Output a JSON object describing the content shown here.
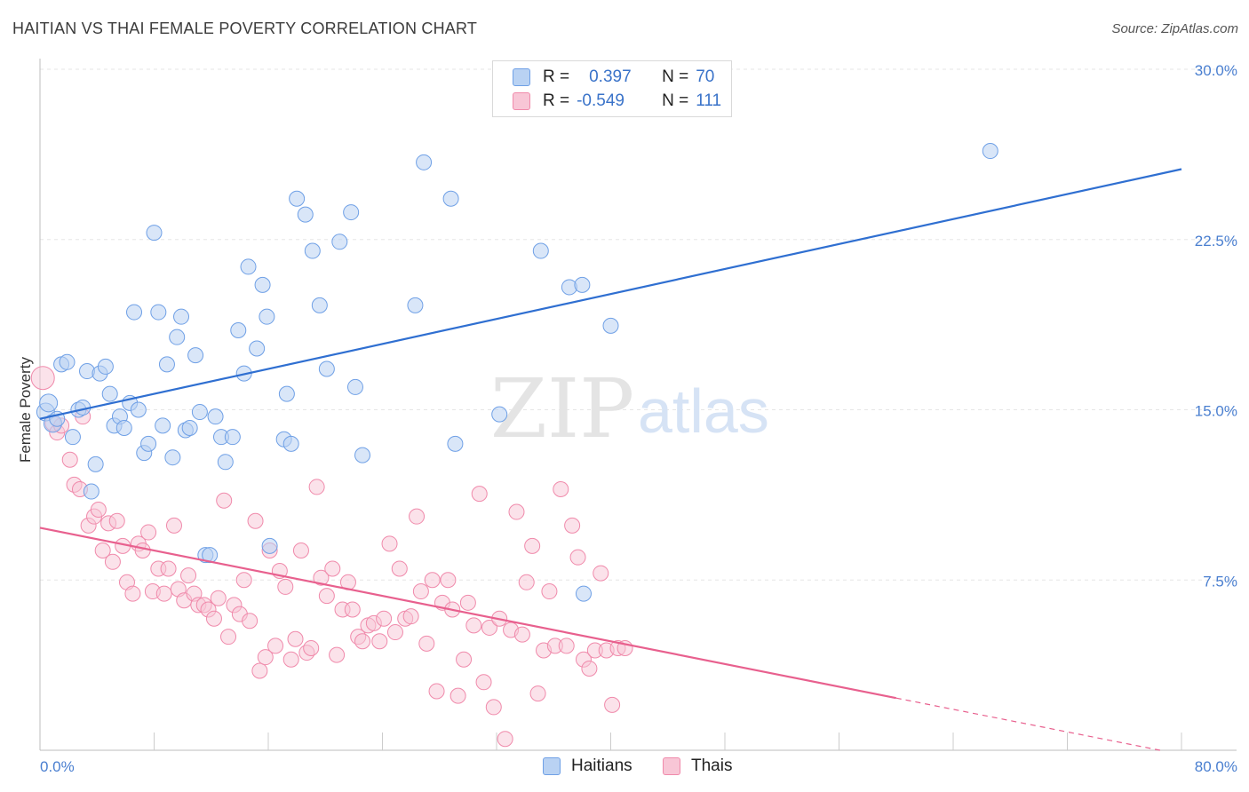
{
  "header": {
    "title": "HAITIAN VS THAI FEMALE POVERTY CORRELATION CHART",
    "source": "Source: ZipAtlas.com"
  },
  "watermark": {
    "zip": "ZIP",
    "atlas": "atlas"
  },
  "legend": {
    "r_label": "R =",
    "n_label": "N =",
    "haitians": {
      "r": "0.397",
      "n": "70",
      "color": "#6fa0e6",
      "fill": "#b9d2f3"
    },
    "thais": {
      "r": "-0.549",
      "n": "111",
      "color": "#f08aab",
      "fill": "#f8c6d6"
    }
  },
  "colors": {
    "haitians_line": "#2f6fd1",
    "thais_line": "#e8608e",
    "grid": "#e6e6e6",
    "axis_text": "#4a7fd0"
  },
  "chart_data": {
    "type": "scatter",
    "title": "HAITIAN VS THAI FEMALE POVERTY CORRELATION CHART",
    "xlabel": "",
    "ylabel": "Female Poverty",
    "xlim": [
      0,
      80
    ],
    "ylim": [
      0,
      30
    ],
    "x_tick_labels": [
      "0.0%",
      "80.0%"
    ],
    "y_ticks": [
      7.5,
      15.0,
      22.5,
      30.0
    ],
    "y_tick_labels": [
      "7.5%",
      "15.0%",
      "22.5%",
      "30.0%"
    ],
    "grid": "horizontal dashed",
    "legend_position": "top-center",
    "series": [
      {
        "name": "Haitians",
        "r": 0.397,
        "n": 70,
        "trend": {
          "x": [
            0,
            80
          ],
          "y": [
            14.6,
            25.6
          ]
        },
        "points": [
          [
            0.4,
            14.9
          ],
          [
            0.6,
            15.3
          ],
          [
            0.9,
            14.4
          ],
          [
            1.2,
            14.6
          ],
          [
            1.5,
            17.0
          ],
          [
            1.9,
            17.1
          ],
          [
            2.3,
            13.8
          ],
          [
            2.7,
            15.0
          ],
          [
            3.0,
            15.1
          ],
          [
            3.3,
            16.7
          ],
          [
            3.6,
            11.4
          ],
          [
            3.9,
            12.6
          ],
          [
            4.2,
            16.6
          ],
          [
            4.6,
            16.9
          ],
          [
            4.9,
            15.7
          ],
          [
            5.2,
            14.3
          ],
          [
            5.6,
            14.7
          ],
          [
            5.9,
            14.2
          ],
          [
            6.3,
            15.3
          ],
          [
            6.6,
            19.3
          ],
          [
            6.9,
            15.0
          ],
          [
            7.3,
            13.1
          ],
          [
            7.6,
            13.5
          ],
          [
            8.0,
            22.8
          ],
          [
            8.3,
            19.3
          ],
          [
            8.6,
            14.3
          ],
          [
            8.9,
            17.0
          ],
          [
            9.3,
            12.9
          ],
          [
            9.6,
            18.2
          ],
          [
            9.9,
            19.1
          ],
          [
            10.2,
            14.1
          ],
          [
            10.5,
            14.2
          ],
          [
            10.9,
            17.4
          ],
          [
            11.2,
            14.9
          ],
          [
            11.6,
            8.6
          ],
          [
            11.9,
            8.6
          ],
          [
            12.3,
            14.7
          ],
          [
            12.7,
            13.8
          ],
          [
            13.0,
            12.7
          ],
          [
            13.5,
            13.8
          ],
          [
            13.9,
            18.5
          ],
          [
            14.3,
            16.6
          ],
          [
            14.6,
            21.3
          ],
          [
            15.2,
            17.7
          ],
          [
            15.6,
            20.5
          ],
          [
            15.9,
            19.1
          ],
          [
            16.1,
            9.0
          ],
          [
            17.1,
            13.7
          ],
          [
            17.3,
            15.7
          ],
          [
            17.6,
            13.5
          ],
          [
            18.0,
            24.3
          ],
          [
            18.6,
            23.6
          ],
          [
            19.1,
            22.0
          ],
          [
            19.6,
            19.6
          ],
          [
            20.1,
            16.8
          ],
          [
            21.0,
            22.4
          ],
          [
            21.8,
            23.7
          ],
          [
            22.1,
            16.0
          ],
          [
            22.6,
            13.0
          ],
          [
            26.3,
            19.6
          ],
          [
            26.9,
            25.9
          ],
          [
            28.8,
            24.3
          ],
          [
            29.1,
            13.5
          ],
          [
            32.2,
            14.8
          ],
          [
            35.1,
            22.0
          ],
          [
            37.1,
            20.4
          ],
          [
            38.0,
            20.5
          ],
          [
            38.1,
            6.9
          ],
          [
            40.0,
            18.7
          ],
          [
            66.6,
            26.4
          ]
        ]
      },
      {
        "name": "Thais",
        "r": -0.549,
        "n": 111,
        "trend": {
          "x": [
            0,
            60
          ],
          "y": [
            9.8,
            2.3
          ]
        },
        "trend_dashed": {
          "x": [
            60,
            78.5
          ],
          "y": [
            2.3,
            0.0
          ]
        },
        "points": [
          [
            0.2,
            16.4
          ],
          [
            0.9,
            14.4
          ],
          [
            1.2,
            14.0
          ],
          [
            1.5,
            14.3
          ],
          [
            2.1,
            12.8
          ],
          [
            2.4,
            11.7
          ],
          [
            2.8,
            11.5
          ],
          [
            3.0,
            14.7
          ],
          [
            3.4,
            9.9
          ],
          [
            3.8,
            10.3
          ],
          [
            4.1,
            10.6
          ],
          [
            4.4,
            8.8
          ],
          [
            4.8,
            10.0
          ],
          [
            5.1,
            8.3
          ],
          [
            5.4,
            10.1
          ],
          [
            5.8,
            9.0
          ],
          [
            6.1,
            7.4
          ],
          [
            6.5,
            6.9
          ],
          [
            6.9,
            9.1
          ],
          [
            7.2,
            8.8
          ],
          [
            7.6,
            9.6
          ],
          [
            7.9,
            7.0
          ],
          [
            8.3,
            8.0
          ],
          [
            8.7,
            6.9
          ],
          [
            9.0,
            8.0
          ],
          [
            9.4,
            9.9
          ],
          [
            9.7,
            7.1
          ],
          [
            10.1,
            6.6
          ],
          [
            10.4,
            7.7
          ],
          [
            10.8,
            6.9
          ],
          [
            11.1,
            6.4
          ],
          [
            11.5,
            6.4
          ],
          [
            11.8,
            6.2
          ],
          [
            12.2,
            5.8
          ],
          [
            12.5,
            6.7
          ],
          [
            12.9,
            11.0
          ],
          [
            13.2,
            5.0
          ],
          [
            13.6,
            6.4
          ],
          [
            14.0,
            6.0
          ],
          [
            14.3,
            7.5
          ],
          [
            14.7,
            5.7
          ],
          [
            15.1,
            10.1
          ],
          [
            15.4,
            3.5
          ],
          [
            15.8,
            4.1
          ],
          [
            16.1,
            8.8
          ],
          [
            16.5,
            4.6
          ],
          [
            16.8,
            7.9
          ],
          [
            17.2,
            7.2
          ],
          [
            17.6,
            4.0
          ],
          [
            17.9,
            4.9
          ],
          [
            18.3,
            8.8
          ],
          [
            18.7,
            4.3
          ],
          [
            19.0,
            4.5
          ],
          [
            19.4,
            11.6
          ],
          [
            19.7,
            7.6
          ],
          [
            20.1,
            6.8
          ],
          [
            20.5,
            8.0
          ],
          [
            20.8,
            4.2
          ],
          [
            21.2,
            6.2
          ],
          [
            21.6,
            7.4
          ],
          [
            21.9,
            6.2
          ],
          [
            22.3,
            5.0
          ],
          [
            22.6,
            4.8
          ],
          [
            23.0,
            5.5
          ],
          [
            23.4,
            5.6
          ],
          [
            23.8,
            4.8
          ],
          [
            24.1,
            5.8
          ],
          [
            24.5,
            9.1
          ],
          [
            24.9,
            5.2
          ],
          [
            25.2,
            8.0
          ],
          [
            25.6,
            5.8
          ],
          [
            26.0,
            5.9
          ],
          [
            26.4,
            10.3
          ],
          [
            26.7,
            7.0
          ],
          [
            27.1,
            4.7
          ],
          [
            27.5,
            7.5
          ],
          [
            27.8,
            2.6
          ],
          [
            28.2,
            6.5
          ],
          [
            28.6,
            7.5
          ],
          [
            28.9,
            6.2
          ],
          [
            29.3,
            2.4
          ],
          [
            29.7,
            4.0
          ],
          [
            30.0,
            6.5
          ],
          [
            30.4,
            5.5
          ],
          [
            30.8,
            11.3
          ],
          [
            31.1,
            3.0
          ],
          [
            31.5,
            5.4
          ],
          [
            31.8,
            1.9
          ],
          [
            32.2,
            5.8
          ],
          [
            32.6,
            0.5
          ],
          [
            33.0,
            5.3
          ],
          [
            33.4,
            10.5
          ],
          [
            33.8,
            5.1
          ],
          [
            34.1,
            7.4
          ],
          [
            34.5,
            9.0
          ],
          [
            34.9,
            2.5
          ],
          [
            35.3,
            4.4
          ],
          [
            35.7,
            7.0
          ],
          [
            36.1,
            4.6
          ],
          [
            36.5,
            11.5
          ],
          [
            36.9,
            4.6
          ],
          [
            37.3,
            9.9
          ],
          [
            37.7,
            8.5
          ],
          [
            38.1,
            4.0
          ],
          [
            38.5,
            3.6
          ],
          [
            38.9,
            4.4
          ],
          [
            39.3,
            7.8
          ],
          [
            39.7,
            4.4
          ],
          [
            40.1,
            2.0
          ],
          [
            40.5,
            4.5
          ],
          [
            41.0,
            4.5
          ]
        ]
      }
    ]
  }
}
